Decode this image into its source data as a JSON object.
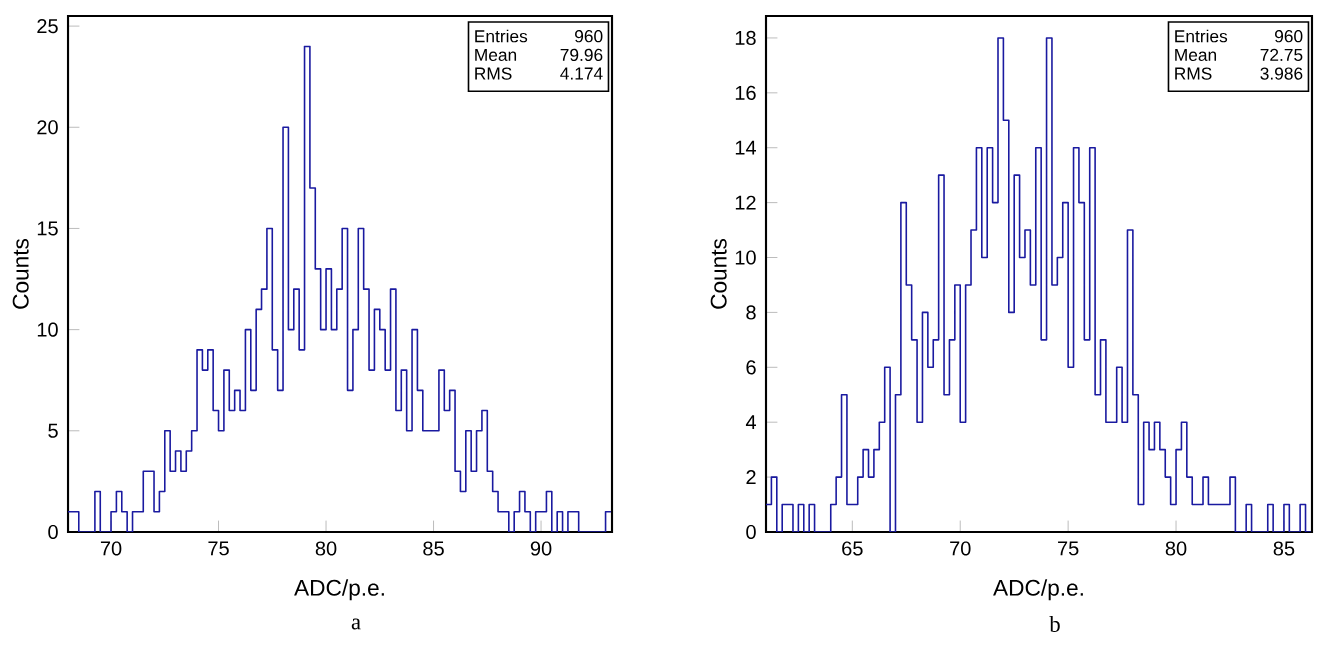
{
  "chart_data": [
    {
      "type": "histogram",
      "xlabel": "ADC/p.e.",
      "ylabel": "Counts",
      "color": "#1a1aa0",
      "xlim": [
        68,
        93.3
      ],
      "xticks": [
        70,
        75,
        80,
        85,
        90
      ],
      "ylim": [
        0,
        25.5
      ],
      "yticks": [
        0,
        5,
        10,
        15,
        20,
        25
      ],
      "bins": [
        68,
        68.25,
        68.5,
        68.75,
        69,
        69.25,
        69.5,
        69.75,
        70,
        70.25,
        70.5,
        70.75,
        71,
        71.25,
        71.5,
        71.75,
        72,
        72.25,
        72.5,
        72.75,
        73,
        73.25,
        73.5,
        73.75,
        74,
        74.25,
        74.5,
        74.75,
        75,
        75.25,
        75.5,
        75.75,
        76,
        76.25,
        76.5,
        76.75,
        77,
        77.25,
        77.5,
        77.75,
        78,
        78.25,
        78.5,
        78.75,
        79,
        79.25,
        79.5,
        79.75,
        80,
        80.25,
        80.5,
        80.75,
        81,
        81.25,
        81.5,
        81.75,
        82,
        82.25,
        82.5,
        82.75,
        83,
        83.25,
        83.5,
        83.75,
        84,
        84.25,
        84.5,
        84.75,
        85,
        85.25,
        85.5,
        85.75,
        86,
        86.25,
        86.5,
        86.75,
        87,
        87.25,
        87.5,
        87.75,
        88,
        88.25,
        88.5,
        88.75,
        89,
        89.25,
        89.5,
        89.75,
        90,
        90.25,
        90.5,
        90.75,
        91,
        91.25,
        91.5,
        91.75,
        92,
        92.25,
        92.5,
        92.75,
        93,
        93.25
      ],
      "values": [
        1,
        1,
        0,
        0,
        0,
        2,
        0,
        0,
        1,
        2,
        1,
        0,
        1,
        1,
        3,
        3,
        1,
        2,
        5,
        3,
        4,
        3,
        4,
        5,
        9,
        8,
        9,
        6,
        5,
        8,
        6,
        7,
        6,
        10,
        7,
        11,
        12,
        15,
        9,
        7,
        20,
        10,
        12,
        9,
        24,
        17,
        13,
        10,
        13,
        10,
        12,
        15,
        7,
        10,
        15,
        12,
        8,
        11,
        10,
        8,
        12,
        6,
        8,
        5,
        10,
        7,
        5,
        5,
        5,
        8,
        6,
        7,
        3,
        2,
        5,
        3,
        5,
        6,
        3,
        2,
        1,
        1,
        0,
        1,
        2,
        1,
        0,
        1,
        1,
        2,
        0,
        1,
        0,
        1,
        1,
        0,
        0,
        0,
        0,
        0,
        1
      ],
      "annotations": [
        "Entries",
        "960",
        "Mean",
        "79.96",
        "RMS",
        "4.174",
        "a"
      ]
    },
    {
      "type": "histogram",
      "xlabel": "ADC/p.e.",
      "ylabel": "Counts",
      "color": "#1a1aa0",
      "xlim": [
        61,
        86.3
      ],
      "xticks": [
        65,
        70,
        75,
        80,
        85
      ],
      "ylim": [
        0,
        18.8
      ],
      "yticks": [
        0,
        2,
        4,
        6,
        8,
        10,
        12,
        14,
        16,
        18
      ],
      "bins": [
        61,
        61.25,
        61.5,
        61.75,
        62,
        62.25,
        62.5,
        62.75,
        63,
        63.25,
        63.5,
        63.75,
        64,
        64.25,
        64.5,
        64.75,
        65,
        65.25,
        65.5,
        65.75,
        66,
        66.25,
        66.5,
        66.75,
        67,
        67.25,
        67.5,
        67.75,
        68,
        68.25,
        68.5,
        68.75,
        69,
        69.25,
        69.5,
        69.75,
        70,
        70.25,
        70.5,
        70.75,
        71,
        71.25,
        71.5,
        71.75,
        72,
        72.25,
        72.5,
        72.75,
        73,
        73.25,
        73.5,
        73.75,
        74,
        74.25,
        74.5,
        74.75,
        75,
        75.25,
        75.5,
        75.75,
        76,
        76.25,
        76.5,
        76.75,
        77,
        77.25,
        77.5,
        77.75,
        78,
        78.25,
        78.5,
        78.75,
        79,
        79.25,
        79.5,
        79.75,
        80,
        80.25,
        80.5,
        80.75,
        81,
        81.25,
        81.5,
        81.75,
        82,
        82.25,
        82.5,
        82.75,
        83,
        83.25,
        83.5,
        83.75,
        84,
        84.25,
        84.5,
        84.75,
        85,
        85.25,
        85.5,
        85.75,
        86,
        86.25
      ],
      "values": [
        1,
        2,
        0,
        1,
        1,
        0,
        1,
        0,
        1,
        0,
        0,
        0,
        1,
        2,
        5,
        1,
        1,
        2,
        3,
        2,
        3,
        4,
        6,
        0,
        5,
        12,
        9,
        7,
        4,
        8,
        6,
        7,
        13,
        5,
        7,
        9,
        4,
        9,
        11,
        14,
        10,
        14,
        12,
        18,
        15,
        8,
        13,
        10,
        11,
        9,
        14,
        7,
        18,
        9,
        10,
        12,
        6,
        14,
        12,
        7,
        14,
        5,
        7,
        4,
        4,
        6,
        4,
        11,
        5,
        1,
        4,
        3,
        4,
        3,
        2,
        1,
        3,
        4,
        2,
        1,
        1,
        2,
        1,
        1,
        1,
        1,
        2,
        0,
        0,
        1,
        0,
        0,
        0,
        1,
        0,
        0,
        1,
        0,
        0,
        1,
        0
      ],
      "annotations": [
        "Entries",
        "960",
        "Mean",
        "72.75",
        "RMS",
        "3.986",
        "b"
      ]
    }
  ]
}
